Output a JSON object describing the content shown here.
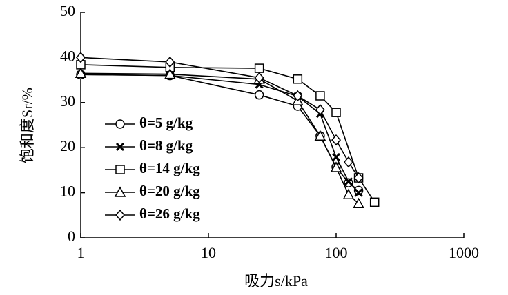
{
  "chart_data": {
    "type": "line",
    "x_label": "吸力s/kPa",
    "y_label": "饱和度Sr/%",
    "xlim": [
      1,
      1000
    ],
    "xticks": [
      1,
      10,
      100,
      1000
    ],
    "xscale": "log",
    "ylim": [
      0,
      50
    ],
    "yticks": [
      0,
      10,
      20,
      30,
      40,
      50
    ],
    "legend": "left",
    "series": [
      {
        "name": "θ=5 g/kg",
        "color": "#000000",
        "marker": "circle",
        "x": [
          1,
          5,
          25,
          50,
          75,
          100,
          125,
          150
        ],
        "values": [
          36.2,
          36,
          31.7,
          29.2,
          22.6,
          15.7,
          12.2,
          10.5
        ]
      },
      {
        "name": "θ=8 g/kg",
        "color": "#000000",
        "marker": "x",
        "x": [
          1,
          5,
          25,
          50,
          75,
          100,
          125,
          150
        ],
        "values": [
          36.2,
          36,
          34,
          31.4,
          27.5,
          17.9,
          12.5,
          10
        ]
      },
      {
        "name": "θ=14 g/kg",
        "color": "#000000",
        "marker": "square",
        "x": [
          1,
          5,
          25,
          50,
          75,
          100,
          150,
          200
        ],
        "values": [
          38.4,
          37.8,
          37.6,
          35.2,
          31.5,
          27.8,
          13.3,
          7.9
        ]
      },
      {
        "name": "θ=20 g/kg",
        "color": "#000000",
        "marker": "triangle",
        "x": [
          1,
          5,
          25,
          50,
          75,
          100,
          125,
          150
        ],
        "values": [
          36.5,
          36.3,
          35.2,
          30.4,
          22.6,
          15.6,
          9.6,
          7.6
        ]
      },
      {
        "name": "θ=26 g/kg",
        "color": "#000000",
        "marker": "diamond",
        "x": [
          1,
          5,
          25,
          50,
          75,
          100,
          125,
          150
        ],
        "values": [
          40,
          39,
          35.5,
          31.5,
          28.4,
          21.7,
          16.8,
          13.3
        ]
      }
    ]
  }
}
